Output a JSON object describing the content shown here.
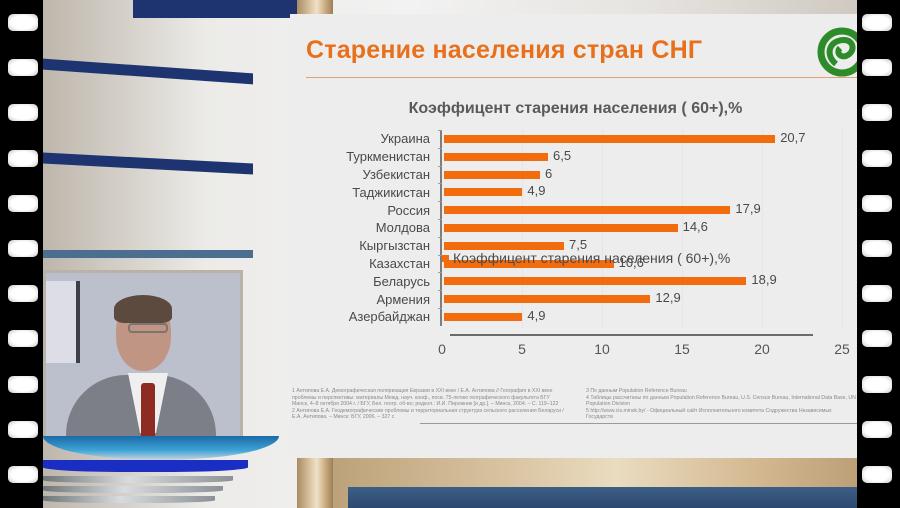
{
  "slide": {
    "title": "Старение населения стран СНГ",
    "logo_icon": "green-spiral-logo-icon",
    "colors": {
      "title": "#e8701c",
      "bar": "#f26c0d",
      "logo": "#2e8b2a",
      "text": "#4a4a4a"
    }
  },
  "chart_data": {
    "type": "bar",
    "orientation": "horizontal",
    "title": "Коэффицент старения населения ( 60+),%",
    "categories": [
      "Украина",
      "Туркменистан",
      "Узбекистан",
      "Таджикистан",
      "Россия",
      "Молдова",
      "Кыргызстан",
      "Казахстан",
      "Беларусь",
      "Армения",
      "Азербайджан"
    ],
    "values": [
      20.7,
      6.5,
      6,
      4.9,
      17.9,
      14.6,
      7.5,
      10.6,
      18.9,
      12.9,
      4.9
    ],
    "value_labels": [
      "20,7",
      "6,5",
      "6",
      "4,9",
      "17,9",
      "14,6",
      "7,5",
      "10,6",
      "18,9",
      "12,9",
      "4,9"
    ],
    "series": [
      {
        "name": "Коэффицент старения населения ( 60+),%",
        "values": [
          20.7,
          6.5,
          6,
          4.9,
          17.9,
          14.6,
          7.5,
          10.6,
          18.9,
          12.9,
          4.9
        ]
      }
    ],
    "xlabel": "",
    "ylabel": "",
    "xlim": [
      0,
      25
    ],
    "x_ticks": [
      "0",
      "5",
      "10",
      "15",
      "20",
      "25"
    ],
    "grid": false,
    "legend_position": "bottom",
    "legend": [
      "Коэффицент старения населения ( 60+),%"
    ]
  },
  "footnotes": {
    "left": [
      "1 Антипова Е.А. Демографическая поляризация Евразии в XXI веке / Е.А. Антипова // География в XXI веке проблемы и перспективы: материалы Межд. науч. конф., посв. 75-летию географического факультета БГУ Минск, 4–8 октября 2004 г. / БГУ, Бел. геогр. об-во; редкол.: И.И. Пирожник [и др.]. – Минск, 2004. – С. 119–122",
      "2 Антипова Е.А. Геодемографические проблемы и территориальная структура сельского расселения Беларуси /Е.А. Антипова. – Минск: БГУ, 2006. – 327 с"
    ],
    "right": [
      "3 По данным Population Reference Bureau",
      "4 Таблицы рассчитаны по данным Population Reference Bureau, U.S. Census Bureau, International Data Base, UN Population Division",
      "5 http://www.cis.minsk.by/ - Официальный сайт Исполнительного комитета Содружества Независимых Государств"
    ]
  },
  "video": {
    "presenter_icon": "presenter-video-icon"
  }
}
